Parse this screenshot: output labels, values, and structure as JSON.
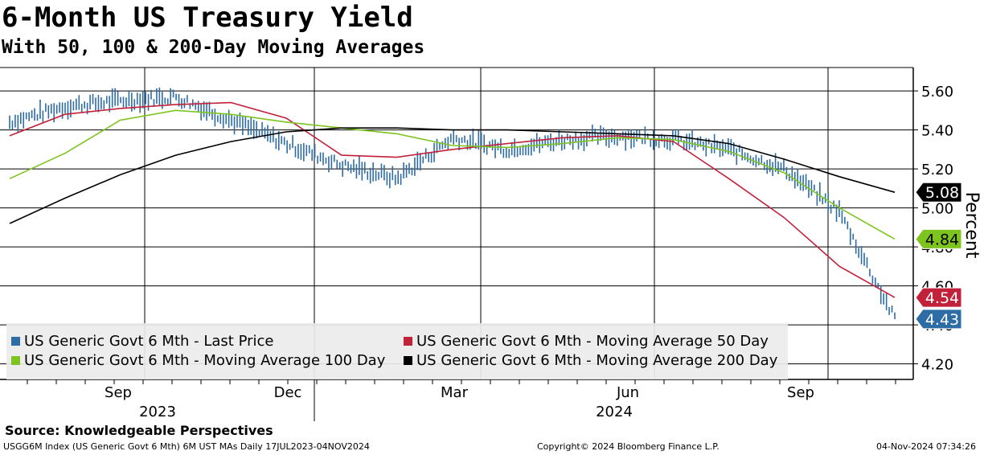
{
  "header": {
    "title": "6-Month US Treasury Yield",
    "subtitle": "With 50, 100 & 200-Day Moving Averages"
  },
  "source": "Source: Knowledgeable Perspectives",
  "footer": {
    "left": "USGG6M Index (US Generic Govt 6 Mth) 6M UST MAs  Daily 17JUL2023-04NOV2024",
    "center": "Copyright© 2024 Bloomberg Finance L.P.",
    "right": "04-Nov-2024 07:34:26"
  },
  "colors": {
    "price": "#2e6ca5",
    "ma50": "#c2213a",
    "ma100": "#7dc41f",
    "ma200": "#000000"
  },
  "chart_data": {
    "type": "line",
    "ylabel": "Percent",
    "ylim": [
      4.12,
      5.72
    ],
    "yticks": [
      4.2,
      4.4,
      4.6,
      4.8,
      5.0,
      5.2,
      5.4,
      5.6
    ],
    "ytick_labels": [
      "4.20",
      "4.40",
      "4.60",
      "4.80",
      "5.00",
      "5.20",
      "5.40",
      "5.60"
    ],
    "x_month_labels": [
      "Sep",
      "Dec",
      "Mar",
      "Jun",
      "Sep"
    ],
    "x_year_labels": [
      "2023",
      "2024"
    ],
    "x": [
      "2023-07",
      "2023-08",
      "2023-09",
      "2023-10",
      "2023-11",
      "2023-12",
      "2024-01",
      "2024-02",
      "2024-03",
      "2024-04",
      "2024-05",
      "2024-06",
      "2024-07",
      "2024-08",
      "2024-09",
      "2024-10",
      "2024-11"
    ],
    "series": [
      {
        "name": "US Generic Govt 6 Mth - Last Price",
        "color": "#2e6ca5",
        "last_label": "4.43",
        "values": [
          5.44,
          5.52,
          5.55,
          5.57,
          5.45,
          5.33,
          5.22,
          5.15,
          5.36,
          5.3,
          5.35,
          5.37,
          5.35,
          5.3,
          5.2,
          4.98,
          4.43
        ]
      },
      {
        "name": "US Generic Govt 6 Mth - Moving Average 50 Day",
        "color": "#c2213a",
        "last_label": "4.54",
        "values": [
          5.37,
          5.48,
          5.51,
          5.53,
          5.54,
          5.46,
          5.27,
          5.26,
          5.3,
          5.33,
          5.36,
          5.37,
          5.34,
          5.15,
          4.95,
          4.7,
          4.54
        ]
      },
      {
        "name": "US Generic Govt 6 Mth - Moving Average 100 Day",
        "color": "#7dc41f",
        "last_label": "4.84",
        "values": [
          5.15,
          5.28,
          5.45,
          5.5,
          5.48,
          5.44,
          5.41,
          5.38,
          5.32,
          5.31,
          5.33,
          5.36,
          5.35,
          5.29,
          5.18,
          5.0,
          4.84
        ]
      },
      {
        "name": "US Generic Govt 6 Mth - Moving Average 200 Day",
        "color": "#000000",
        "last_label": "5.08",
        "values": [
          4.92,
          5.05,
          5.17,
          5.27,
          5.34,
          5.39,
          5.41,
          5.41,
          5.4,
          5.4,
          5.39,
          5.38,
          5.37,
          5.33,
          5.25,
          5.16,
          5.08
        ]
      }
    ]
  }
}
